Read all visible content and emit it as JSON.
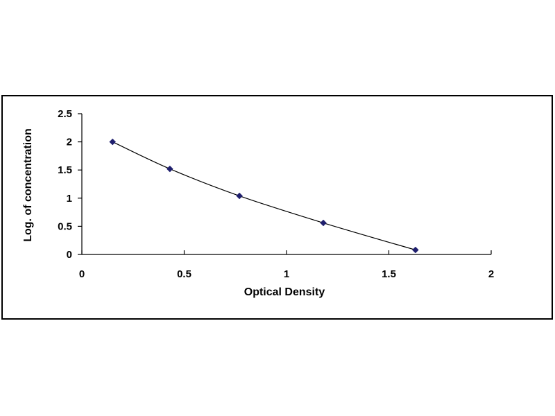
{
  "chart_data": {
    "type": "scatter",
    "title": "",
    "xlabel": "Optical Density",
    "ylabel": "Log. of concentration",
    "xlim": [
      0,
      2
    ],
    "ylim": [
      0,
      2.5
    ],
    "x_ticks": [
      0,
      0.5,
      1,
      1.5,
      2
    ],
    "x_tick_labels": [
      "0",
      "0.5",
      "1",
      "1.5",
      "2"
    ],
    "y_ticks": [
      0,
      0.5,
      1,
      1.5,
      2,
      2.5
    ],
    "y_tick_labels": [
      "0",
      "0.5",
      "1",
      "1.5",
      "2",
      "2.5"
    ],
    "grid": false,
    "legend": "none",
    "marker": "diamond",
    "marker_color": "#1f1f6e",
    "line_color": "#000000",
    "trendline": "smooth curve through points",
    "series": [
      {
        "points": [
          {
            "x": 0.15,
            "y": 2.0
          },
          {
            "x": 0.43,
            "y": 1.52
          },
          {
            "x": 0.77,
            "y": 1.04
          },
          {
            "x": 1.18,
            "y": 0.56
          },
          {
            "x": 1.63,
            "y": 0.08
          }
        ]
      }
    ]
  }
}
